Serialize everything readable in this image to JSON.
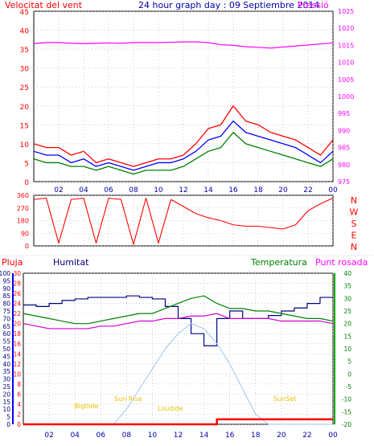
{
  "header": {
    "wind_label": "Velocitat del vent",
    "title": "24 hour graph day : 09 Septiembre 2014",
    "pressure_label": "Pressió"
  },
  "bottom_header": {
    "rain": "Pluja",
    "humidity": "Humitat",
    "temperature": "Temperatura",
    "dewpoint": "Punt rosada"
  },
  "sun_labels": {
    "first_light": "Bigtlide",
    "sunrise": "Sun Rise",
    "solar_noon": "Loudide",
    "sunset": "SunSet"
  },
  "colors": {
    "wind": "#ff0000",
    "gust": "#008000",
    "avg_wind": "#0000ff",
    "pressure": "#ff00ff",
    "direction": "#ff0000",
    "humidity": "#000080",
    "temperature": "#008000",
    "dewpoint": "#d000d0",
    "rain": "#ff0000",
    "solar": "#9ec4ee",
    "grid": "#b0b0b0",
    "frame": "#000000"
  },
  "chart_data": [
    {
      "type": "line",
      "name": "wind-pressure",
      "x_ticks": [
        "02",
        "04",
        "06",
        "08",
        "10",
        "12",
        "14",
        "16",
        "18",
        "20",
        "22",
        "00"
      ],
      "x": [
        0,
        1,
        2,
        3,
        4,
        5,
        6,
        7,
        8,
        9,
        10,
        11,
        12,
        13,
        14,
        15,
        16,
        17,
        18,
        19,
        20,
        21,
        22,
        23,
        24
      ],
      "ylim_left": [
        0,
        45
      ],
      "y_ticks_left": [
        "0",
        "5",
        "10",
        "15",
        "20",
        "25",
        "30",
        "35",
        "40",
        "45"
      ],
      "ylim_right": [
        975,
        1025
      ],
      "y_ticks_right": [
        "975",
        "980",
        "985",
        "990",
        "995",
        "1000",
        "1005",
        "1010",
        "1015",
        "1020",
        "1025"
      ],
      "series": [
        {
          "key": "wind",
          "values": [
            10,
            9,
            9,
            7,
            8,
            5,
            6,
            5,
            4,
            5,
            6,
            6,
            7,
            10,
            14,
            15,
            20,
            16,
            15,
            13,
            12,
            11,
            9,
            7,
            11
          ]
        },
        {
          "key": "gust",
          "values": [
            6,
            5,
            5,
            4,
            4,
            3,
            4,
            3,
            2,
            3,
            3,
            3,
            4,
            6,
            8,
            9,
            13,
            10,
            9,
            8,
            7,
            6,
            5,
            4,
            6
          ]
        },
        {
          "key": "avg_wind",
          "values": [
            8,
            7,
            7,
            5,
            6,
            4,
            5,
            4,
            3,
            4,
            5,
            5,
            6,
            8,
            11,
            12,
            16,
            13,
            12,
            11,
            10,
            9,
            7,
            5,
            8
          ]
        },
        {
          "key": "pressure",
          "axis": "right",
          "values": [
            1015.5,
            1015.8,
            1015.8,
            1015.6,
            1015.5,
            1015.6,
            1015.7,
            1015.6,
            1015.8,
            1015.8,
            1015.8,
            1015.9,
            1016.0,
            1016.0,
            1015.8,
            1015.2,
            1015.0,
            1014.6,
            1014.4,
            1014.2,
            1014.5,
            1014.8,
            1015.1,
            1015.4,
            1015.7
          ]
        }
      ]
    },
    {
      "type": "line",
      "name": "wind-direction",
      "x": [
        0,
        1,
        2,
        3,
        4,
        5,
        6,
        7,
        8,
        9,
        10,
        11,
        12,
        13,
        14,
        15,
        16,
        17,
        18,
        19,
        20,
        21,
        22,
        23,
        24
      ],
      "ylim": [
        0,
        360
      ],
      "y_ticks": [
        "0",
        "90",
        "180",
        "270",
        "360"
      ],
      "compass": [
        "N",
        "W",
        "S",
        "E",
        "N"
      ],
      "series": [
        {
          "key": "direction",
          "values": [
            330,
            340,
            20,
            330,
            340,
            20,
            340,
            330,
            10,
            340,
            20,
            330,
            280,
            230,
            200,
            180,
            150,
            140,
            140,
            130,
            120,
            150,
            250,
            300,
            340
          ]
        }
      ]
    },
    {
      "type": "line",
      "name": "temp-humidity-rain",
      "x": [
        0,
        1,
        2,
        3,
        4,
        5,
        6,
        7,
        8,
        9,
        10,
        11,
        12,
        13,
        14,
        15,
        16,
        17,
        18,
        19,
        20,
        21,
        22,
        23,
        24
      ],
      "ylim_rain": [
        0,
        30
      ],
      "y_ticks_rain": [
        "0",
        "2",
        "4",
        "6",
        "8",
        "10",
        "12",
        "14",
        "16",
        "18",
        "20",
        "22",
        "24",
        "26",
        "28",
        "30"
      ],
      "ylim_humidity": [
        0,
        100
      ],
      "y_ticks_humidity": [
        "0",
        "5",
        "10",
        "15",
        "20",
        "25",
        "30",
        "35",
        "40",
        "45",
        "50",
        "55",
        "60",
        "65",
        "70",
        "75",
        "80",
        "85",
        "90",
        "95",
        "100"
      ],
      "ylim_temp": [
        -20,
        40
      ],
      "y_ticks_temp": [
        "-20",
        "-15",
        "-10",
        "-5",
        "0",
        "5",
        "10",
        "15",
        "20",
        "25",
        "30",
        "35",
        "40"
      ],
      "series": [
        {
          "key": "humidity",
          "axis": "humidity",
          "values": [
            79,
            78,
            80,
            82,
            83,
            84,
            84,
            84,
            85,
            84,
            83,
            78,
            70,
            60,
            52,
            70,
            75,
            70,
            70,
            72,
            75,
            77,
            80,
            84,
            84
          ]
        },
        {
          "key": "temperature",
          "axis": "temp",
          "values": [
            24,
            23,
            22,
            21,
            20,
            20,
            21,
            22,
            23,
            24,
            24,
            26,
            28,
            30,
            31,
            28,
            26,
            26,
            25,
            25,
            24,
            23,
            22,
            22,
            21
          ]
        },
        {
          "key": "dewpoint",
          "axis": "temp",
          "values": [
            20,
            19,
            18,
            18,
            18,
            18,
            19,
            19,
            20,
            21,
            21,
            22,
            22,
            23,
            23,
            24,
            22,
            22,
            22,
            22,
            21,
            21,
            21,
            21,
            20
          ]
        },
        {
          "key": "solar",
          "axis": "rain",
          "values": [
            0,
            0,
            0,
            0,
            0,
            0,
            0,
            0,
            3,
            7,
            11,
            15,
            18,
            20,
            19,
            16,
            12,
            7,
            2,
            0,
            0,
            0,
            0,
            0,
            0
          ]
        },
        {
          "key": "rain",
          "axis": "rain",
          "values": [
            0,
            0,
            0,
            0,
            0,
            0,
            0,
            0,
            0,
            0,
            0,
            0,
            0,
            0,
            0,
            1,
            1,
            1,
            1,
            1,
            1,
            1,
            1,
            1,
            1
          ]
        }
      ]
    }
  ]
}
